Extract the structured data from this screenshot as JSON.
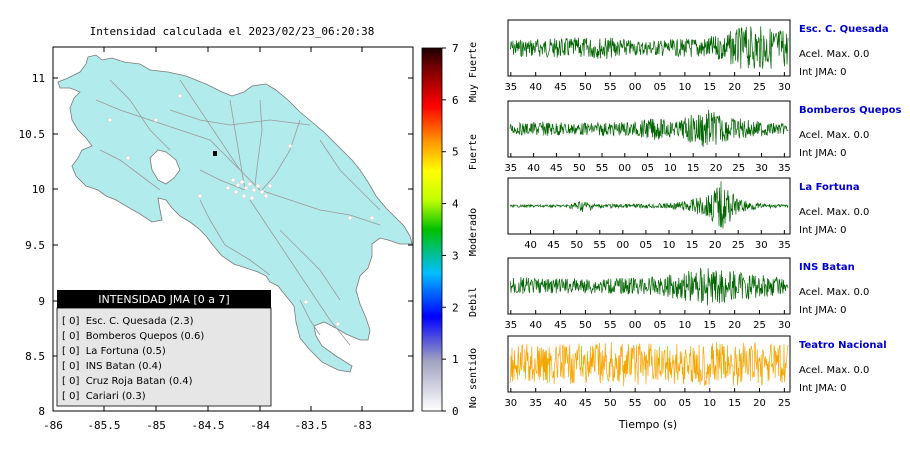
{
  "map": {
    "title": "Intensidad calculada el 2023/02/23_06:20:38",
    "x_ticks": [
      "-86",
      "-85.5",
      "-85",
      "-84.5",
      "-84",
      "-83.5",
      "-83"
    ],
    "y_ticks": [
      "11",
      "10.5",
      "10",
      "9.5",
      "9",
      "8.5",
      "8"
    ],
    "colorbar_ticks": [
      "7",
      "6",
      "5",
      "4",
      "3",
      "2",
      "1",
      "0"
    ],
    "colorbar_labels": [
      "Muy Fuerte",
      "Fuerte",
      "Moderado",
      "Debil",
      "No sentido"
    ],
    "legend": {
      "title": "INTENSIDAD JMA [0 a 7]",
      "items": [
        "[ 0]  Esc. C. Quesada (2.3)",
        "[ 0]  Bomberos Quepos (0.6)",
        "[ 0]  La Fortuna (0.5)",
        "[ 0]  INS Batan (0.4)",
        "[ 0]  Cruz Roja Batan (0.4)",
        "[ 0]  Cariari (0.3)"
      ]
    }
  },
  "chart_data": [
    {
      "type": "line",
      "title": "Esc. C. Quesada",
      "x_tick_labels": [
        "35",
        "40",
        "45",
        "50",
        "55",
        "00",
        "05",
        "10",
        "15",
        "20",
        "25",
        "30"
      ],
      "info": [
        "Acel. Max. 0.0",
        "Int JMA: 0"
      ],
      "color": "#006400"
    },
    {
      "type": "line",
      "title": "Bomberos Quepos",
      "x_tick_labels": [
        "35",
        "40",
        "45",
        "50",
        "55",
        "00",
        "05",
        "10",
        "15",
        "20",
        "25",
        "30",
        "35"
      ],
      "info": [
        "Acel. Max. 0.0",
        "Int JMA: 0"
      ],
      "color": "#006400"
    },
    {
      "type": "line",
      "title": "La Fortuna",
      "x_tick_labels": [
        "40",
        "45",
        "50",
        "55",
        "00",
        "05",
        "10",
        "15",
        "20",
        "25",
        "30",
        "35"
      ],
      "info": [
        "Acel. Max. 0.0",
        "Int JMA: 0"
      ],
      "color": "#006400"
    },
    {
      "type": "line",
      "title": "INS Batan",
      "x_tick_labels": [
        "35",
        "40",
        "45",
        "50",
        "55",
        "00",
        "05",
        "10",
        "15",
        "20",
        "25",
        "30"
      ],
      "info": [
        "Acel. Max. 0.0",
        "Int JMA: 0"
      ],
      "color": "#006400"
    },
    {
      "type": "line",
      "title": "Teatro Nacional",
      "x_tick_labels": [
        "30",
        "35",
        "40",
        "45",
        "50",
        "55",
        "00",
        "05",
        "10",
        "15",
        "20",
        "25"
      ],
      "info": [
        "Acel. Max. 0.0",
        "Int JMA: 0"
      ],
      "color": "#f5a500",
      "xlabel": "Tiempo (s)"
    }
  ],
  "colors": {
    "land": "#b2ebeb",
    "road": "#9a9a9a",
    "station_title": "#0000cc",
    "legend_header_bg": "#000000",
    "legend_body_bg": "#e6e6e6"
  }
}
